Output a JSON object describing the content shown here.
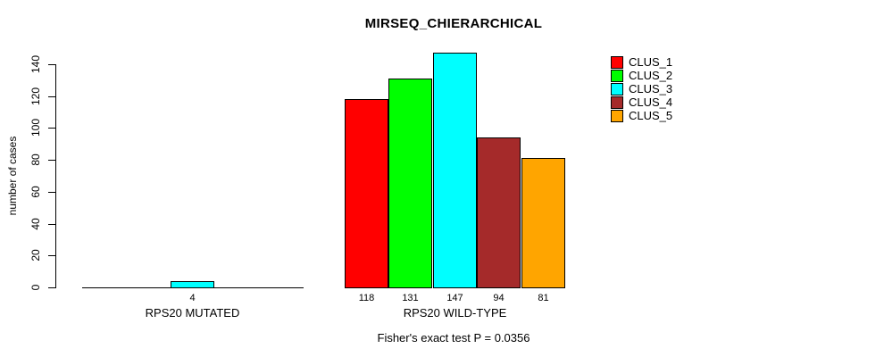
{
  "chart_data": {
    "type": "bar",
    "title": "MIRSEQ_CHIERARCHICAL",
    "ylabel": "number of cases",
    "ylim": [
      0,
      140
    ],
    "yticks": [
      0,
      20,
      40,
      60,
      80,
      100,
      120,
      140
    ],
    "categories": [
      "RPS20 MUTATED",
      "RPS20 WILD-TYPE"
    ],
    "series": [
      {
        "name": "CLUS_1",
        "color": "#ff0000",
        "values": [
          0,
          118
        ]
      },
      {
        "name": "CLUS_2",
        "color": "#00ff00",
        "values": [
          0,
          131
        ]
      },
      {
        "name": "CLUS_3",
        "color": "#00ffff",
        "values": [
          4,
          147
        ]
      },
      {
        "name": "CLUS_4",
        "color": "#a52a2a",
        "values": [
          0,
          94
        ]
      },
      {
        "name": "CLUS_5",
        "color": "#ffa500",
        "values": [
          0,
          81
        ]
      }
    ],
    "value_labels": "shown for non-zero bars",
    "legend_position": "top-right",
    "grid": false
  },
  "caption": "Fisher's exact test P = 0.0356"
}
